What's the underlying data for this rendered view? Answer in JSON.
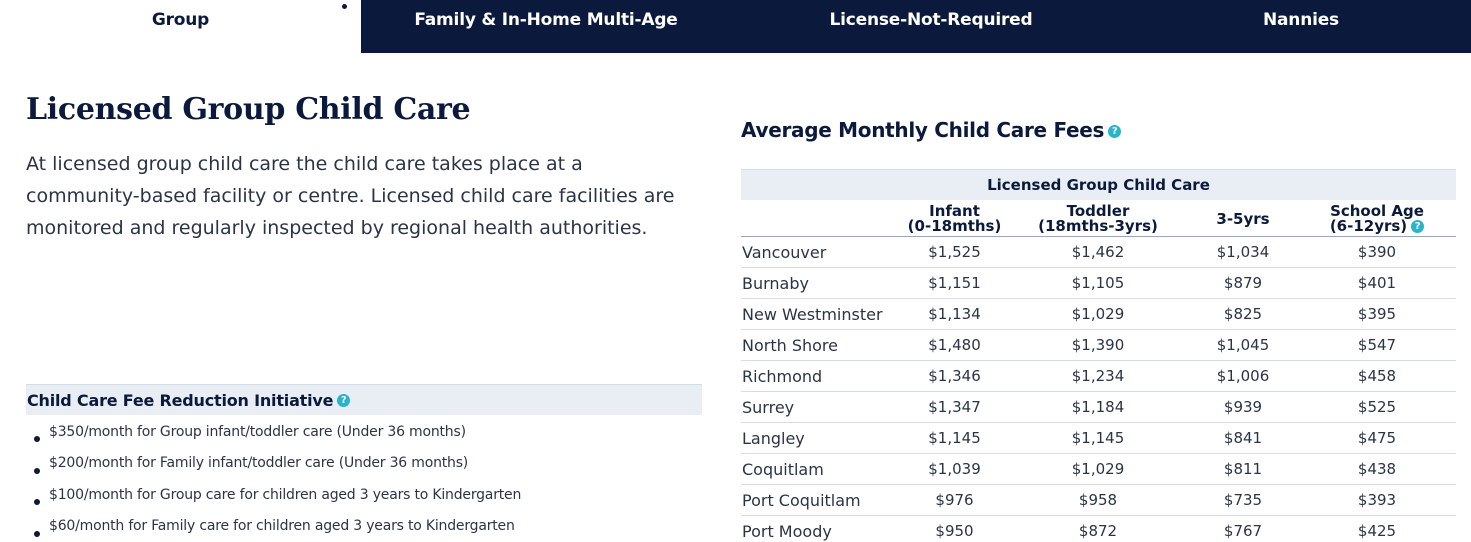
{
  "tabs": [
    {
      "label": "Group",
      "active": true
    },
    {
      "label": "Family & In-Home Multi-Age",
      "active": false
    },
    {
      "label": "License-Not-Required",
      "active": false
    },
    {
      "label": "Nannies",
      "active": false
    }
  ],
  "page": {
    "title": "Licensed Group Child Care",
    "intro": "At licensed group child care the child care takes place at a community-based facility or centre. Licensed child care facilities are monitored and regularly inspected by regional health authorities."
  },
  "fee_reduction": {
    "heading": "Child Care Fee Reduction Initiative",
    "items": [
      "$350/month for Group infant/toddler care (Under 36 months)",
      "$200/month for Family infant/toddler care (Under 36 months)",
      "$100/month for Group care for children aged 3 years to Kindergarten",
      "$60/month for Family care for children aged 3 years to Kindergarten"
    ]
  },
  "fees": {
    "title": "Average Monthly Child Care Fees",
    "group_header": "Licensed Group Child Care",
    "columns": [
      {
        "line1": "Infant",
        "line2": "(0-18mths)"
      },
      {
        "line1": "Toddler",
        "line2": "(18mths-3yrs)"
      },
      {
        "line1": "3-5yrs",
        "line2": ""
      },
      {
        "line1": "School Age",
        "line2": "(6-12yrs)"
      }
    ],
    "rows": [
      {
        "city": "Vancouver",
        "values": [
          "$1,525",
          "$1,462",
          "$1,034",
          "$390"
        ]
      },
      {
        "city": "Burnaby",
        "values": [
          "$1,151",
          "$1,105",
          "$879",
          "$401"
        ]
      },
      {
        "city": "New Westminster",
        "values": [
          "$1,134",
          "$1,029",
          "$825",
          "$395"
        ]
      },
      {
        "city": "North Shore",
        "values": [
          "$1,480",
          "$1,390",
          "$1,045",
          "$547"
        ]
      },
      {
        "city": "Richmond",
        "values": [
          "$1,346",
          "$1,234",
          "$1,006",
          "$458"
        ]
      },
      {
        "city": "Surrey",
        "values": [
          "$1,347",
          "$1,184",
          "$939",
          "$525"
        ]
      },
      {
        "city": "Langley",
        "values": [
          "$1,145",
          "$1,145",
          "$841",
          "$475"
        ]
      },
      {
        "city": "Coquitlam",
        "values": [
          "$1,039",
          "$1,029",
          "$811",
          "$438"
        ]
      },
      {
        "city": "Port Coquitlam",
        "values": [
          "$976",
          "$958",
          "$735",
          "$393"
        ]
      },
      {
        "city": "Port Moody",
        "values": [
          "$950",
          "$872",
          "$767",
          "$425"
        ]
      }
    ]
  },
  "icons": {
    "help": "question-circle-icon",
    "help_glyph": "?"
  },
  "colors": {
    "navy": "#0b1a3c",
    "accent": "#2bb3c9",
    "band": "#e8eef4"
  }
}
